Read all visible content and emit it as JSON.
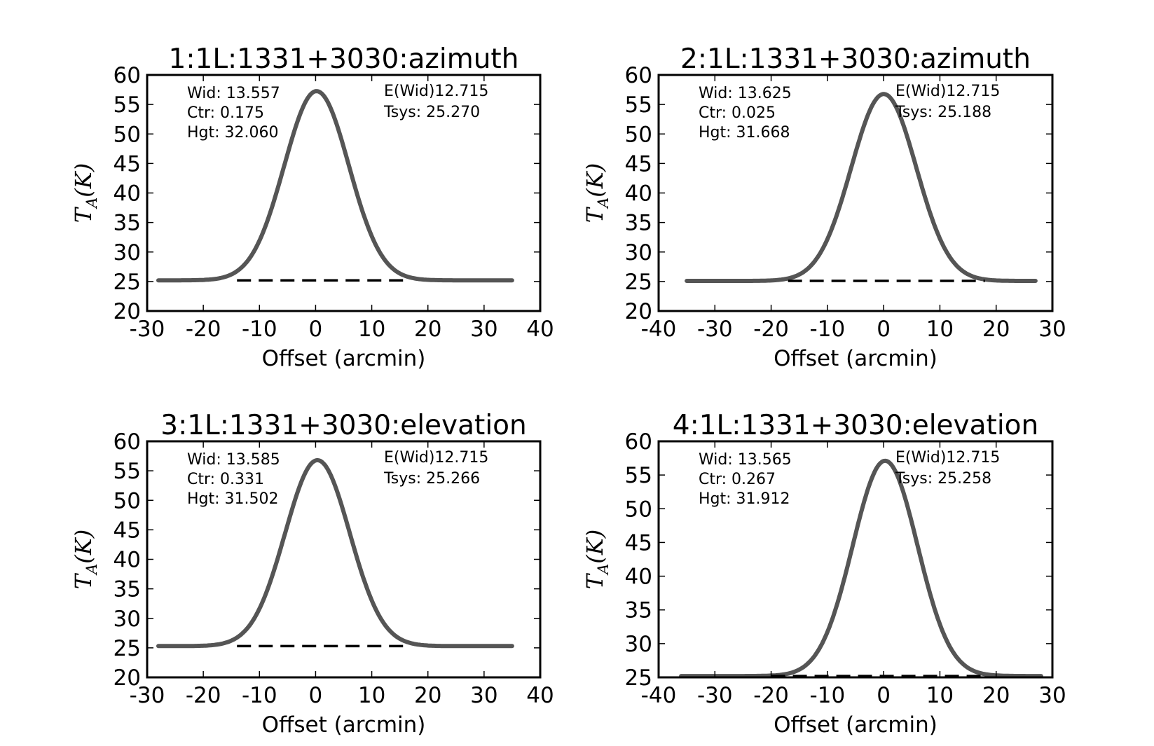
{
  "chart_data": [
    {
      "type": "line",
      "title": "1:1L:1331+3030:azimuth",
      "xlabel": "Offset (arcmin)",
      "ylabel": {
        "main": "T",
        "sub": "A",
        "suffix": "(K)"
      },
      "xlim": [
        -30,
        40
      ],
      "ylim": [
        20,
        60
      ],
      "xticks": [
        -30,
        -20,
        -10,
        0,
        10,
        20,
        30,
        40
      ],
      "yticks": [
        20,
        25,
        30,
        35,
        40,
        45,
        50,
        55,
        60
      ],
      "xtick_labels": [
        "-30",
        "-20",
        "-10",
        "0",
        "10",
        "20",
        "30",
        "40"
      ],
      "ytick_labels": [
        "20",
        "25",
        "30",
        "35",
        "40",
        "45",
        "50",
        "55",
        "60"
      ],
      "grid": false,
      "fit": {
        "width": 13.557,
        "center": 0.175,
        "height": 32.06,
        "baseline": 25.2
      },
      "x_range": [
        -28,
        35
      ],
      "baseline_x_range": [
        -14,
        16
      ],
      "annotations_left": [
        "Wid: 13.557",
        "Ctr: 0.175",
        "Hgt: 32.060"
      ],
      "annotations_right": [
        "E(Wid)12.715",
        "Tsys: 25.270"
      ]
    },
    {
      "type": "line",
      "title": "2:1L:1331+3030:azimuth",
      "xlabel": "Offset (arcmin)",
      "ylabel": {
        "main": "T",
        "sub": "A",
        "suffix": "(K)"
      },
      "xlim": [
        -40,
        30
      ],
      "ylim": [
        20,
        60
      ],
      "xticks": [
        -40,
        -30,
        -20,
        -10,
        0,
        10,
        20,
        30
      ],
      "yticks": [
        20,
        25,
        30,
        35,
        40,
        45,
        50,
        55,
        60
      ],
      "xtick_labels": [
        "-40",
        "-30",
        "-20",
        "-10",
        "0",
        "10",
        "20",
        "30"
      ],
      "ytick_labels": [
        "20",
        "25",
        "30",
        "35",
        "40",
        "45",
        "50",
        "55",
        "60"
      ],
      "grid": false,
      "fit": {
        "width": 13.625,
        "center": 0.025,
        "height": 31.668,
        "baseline": 25.1
      },
      "x_range": [
        -35,
        27
      ],
      "baseline_x_range": [
        -17,
        18
      ],
      "annotations_left": [
        "Wid: 13.625",
        "Ctr: 0.025",
        "Hgt: 31.668"
      ],
      "annotations_right": [
        "E(Wid)12.715",
        "Tsys: 25.188"
      ]
    },
    {
      "type": "line",
      "title": "3:1L:1331+3030:elevation",
      "xlabel": "Offset (arcmin)",
      "ylabel": {
        "main": "T",
        "sub": "A",
        "suffix": "(K)"
      },
      "xlim": [
        -30,
        40
      ],
      "ylim": [
        20,
        60
      ],
      "xticks": [
        -30,
        -20,
        -10,
        0,
        10,
        20,
        30,
        40
      ],
      "yticks": [
        20,
        25,
        30,
        35,
        40,
        45,
        50,
        55,
        60
      ],
      "xtick_labels": [
        "-30",
        "-20",
        "-10",
        "0",
        "10",
        "20",
        "30",
        "40"
      ],
      "ytick_labels": [
        "20",
        "25",
        "30",
        "35",
        "40",
        "45",
        "50",
        "55",
        "60"
      ],
      "grid": false,
      "fit": {
        "width": 13.585,
        "center": 0.331,
        "height": 31.502,
        "baseline": 25.3
      },
      "x_range": [
        -28,
        35
      ],
      "baseline_x_range": [
        -14,
        16
      ],
      "annotations_left": [
        "Wid: 13.585",
        "Ctr: 0.331",
        "Hgt: 31.502"
      ],
      "annotations_right": [
        "E(Wid)12.715",
        "Tsys: 25.266"
      ]
    },
    {
      "type": "line",
      "title": "4:1L:1331+3030:elevation",
      "xlabel": "Offset (arcmin)",
      "ylabel": {
        "main": "T",
        "sub": "A",
        "suffix": "(K)"
      },
      "xlim": [
        -40,
        30
      ],
      "ylim": [
        25,
        60
      ],
      "xticks": [
        -40,
        -30,
        -20,
        -10,
        0,
        10,
        20,
        30
      ],
      "yticks": [
        25,
        30,
        35,
        40,
        45,
        50,
        55,
        60
      ],
      "xtick_labels": [
        "-40",
        "-30",
        "-20",
        "-10",
        "0",
        "10",
        "20",
        "30"
      ],
      "ytick_labels": [
        "25",
        "30",
        "35",
        "40",
        "45",
        "50",
        "55",
        "60"
      ],
      "grid": false,
      "fit": {
        "width": 13.565,
        "center": 0.267,
        "height": 31.912,
        "baseline": 25.2
      },
      "x_range": [
        -36,
        28
      ],
      "baseline_x_range": [
        -20,
        18
      ],
      "annotations_left": [
        "Wid: 13.565",
        "Ctr: 0.267",
        "Hgt: 31.912"
      ],
      "annotations_right": [
        "E(Wid)12.715",
        "Tsys: 25.258"
      ]
    }
  ]
}
